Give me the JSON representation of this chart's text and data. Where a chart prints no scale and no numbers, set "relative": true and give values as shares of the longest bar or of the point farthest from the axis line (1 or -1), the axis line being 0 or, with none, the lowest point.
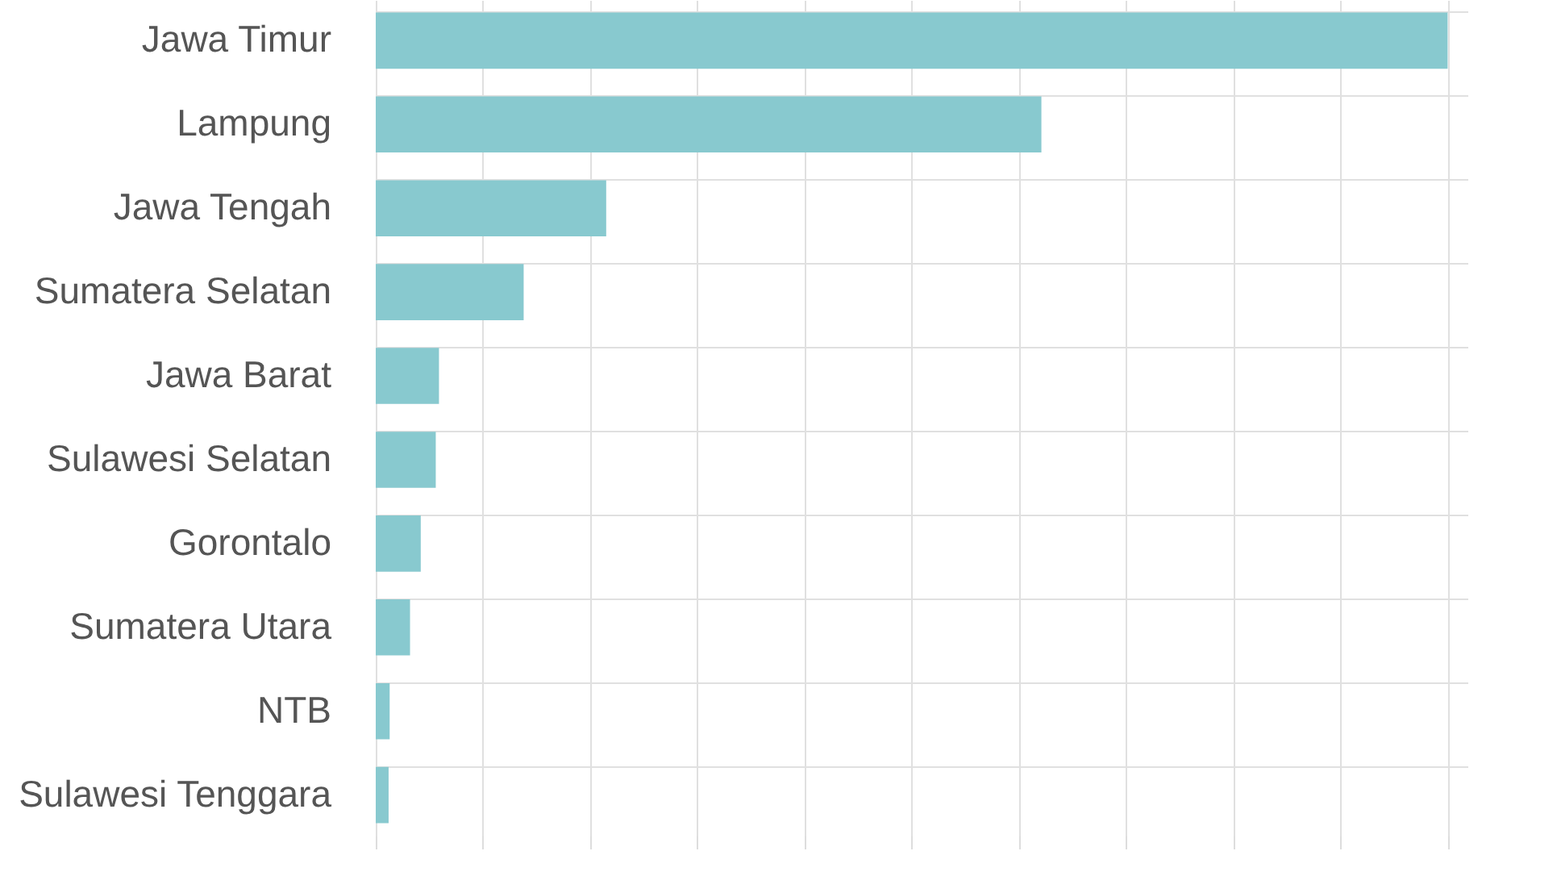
{
  "chart_data": {
    "type": "bar",
    "orientation": "horizontal",
    "relative": true,
    "grid": true,
    "categories": [
      "Jawa Timur",
      "Lampung",
      "Jawa Tengah",
      "Sumatera Selatan",
      "Jawa Barat",
      "Sulawesi Selatan",
      "Gorontalo",
      "Sumatera Utara",
      "NTB",
      "Sulawesi Tenggara"
    ],
    "values": [
      1,
      0.621,
      0.215,
      0.138,
      0.059,
      0.056,
      0.042,
      0.032,
      0.013,
      0.012
    ],
    "color": "#88c9cf"
  }
}
